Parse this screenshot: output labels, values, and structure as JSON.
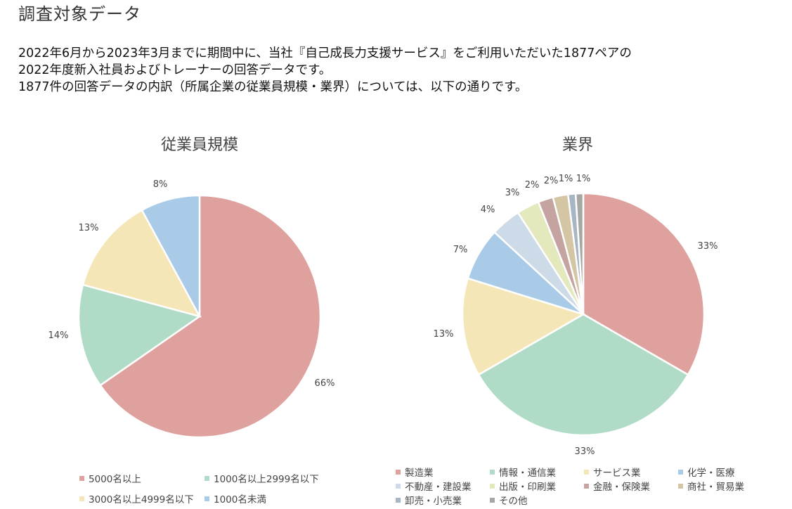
{
  "page": {
    "title": "調査対象データ",
    "intro_lines": [
      "2022年6月から2023年3月までに期間中に、当社『自己成長力支援サービス』をご利用いただいた1877ペアの",
      "2022年度新入社員およびトレーナーの回答データです。",
      "1877件の回答データの内訳（所属企業の従業員規模・業界）については、以下の通りです。"
    ]
  },
  "chart_data": [
    {
      "type": "pie",
      "title": "従業員規模",
      "categories": [
        "5000名以上",
        "1000名以上2999名以下",
        "3000名以上4999名以下",
        "1000名未満"
      ],
      "values": [
        66,
        14,
        13,
        8
      ],
      "labels": [
        "66%",
        "14%",
        "13%",
        "8%"
      ],
      "colors": [
        "#dea19e",
        "#b0dbc6",
        "#f5e6b7",
        "#aacbe8"
      ],
      "legend": "bottom"
    },
    {
      "type": "pie",
      "title": "業界",
      "categories": [
        "製造業",
        "情報・通信業",
        "サービス業",
        "化学・医療",
        "不動産・建設業",
        "出版・印刷業",
        "金融・保険業",
        "商社・貿易業",
        "卸売・小売業",
        "その他"
      ],
      "values": [
        33,
        33,
        13,
        7,
        4,
        3,
        2,
        2,
        1,
        1
      ],
      "labels": [
        "33%",
        "33%",
        "13%",
        "7%",
        "4%",
        "3%",
        "2%",
        "2%",
        "1%",
        "1%"
      ],
      "colors": [
        "#dea19e",
        "#b0dbc6",
        "#f5e6b7",
        "#aacbe8",
        "#cddbe8",
        "#e3e8bd",
        "#c4a3a0",
        "#d4c6a4",
        "#a8b5c5",
        "#a5a8a2"
      ],
      "legend": "bottom"
    }
  ]
}
